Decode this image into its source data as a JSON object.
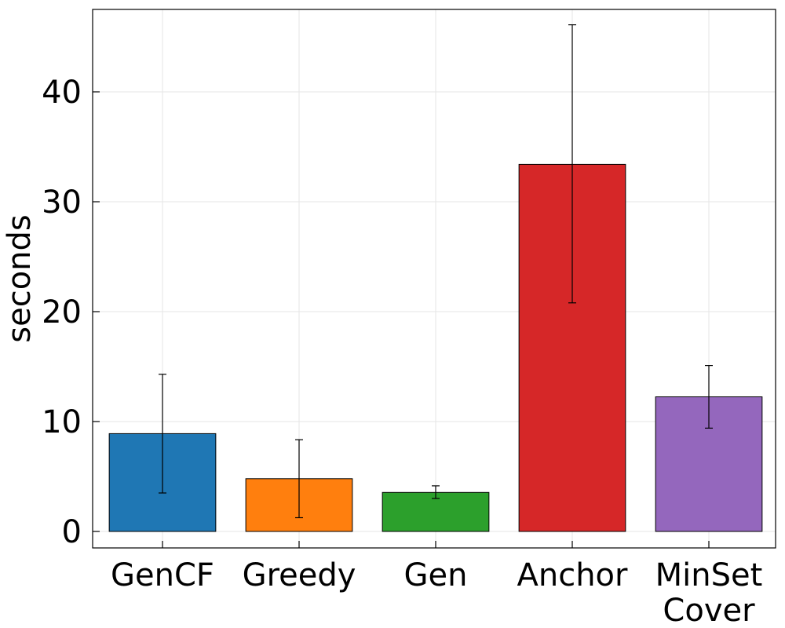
{
  "chart_data": {
    "type": "bar",
    "title": "",
    "xlabel": "",
    "ylabel": "seconds",
    "categories": [
      [
        "GenCF"
      ],
      [
        "Greedy"
      ],
      [
        "Gen"
      ],
      [
        "Anchor"
      ],
      [
        "MinSet",
        "Cover"
      ]
    ],
    "values": [
      8.9,
      4.8,
      3.55,
      33.4,
      12.25
    ],
    "error_low": [
      3.5,
      1.25,
      3.0,
      20.8,
      9.4
    ],
    "error_high": [
      14.3,
      8.35,
      4.15,
      46.1,
      15.1
    ],
    "colors": [
      "#1f77b4",
      "#ff7f0e",
      "#2ca02c",
      "#d62728",
      "#9467bd"
    ],
    "yticks": [
      0,
      10,
      20,
      30,
      40
    ],
    "ylim": [
      -1.5,
      47.5
    ],
    "grid": true,
    "legend": "none"
  }
}
